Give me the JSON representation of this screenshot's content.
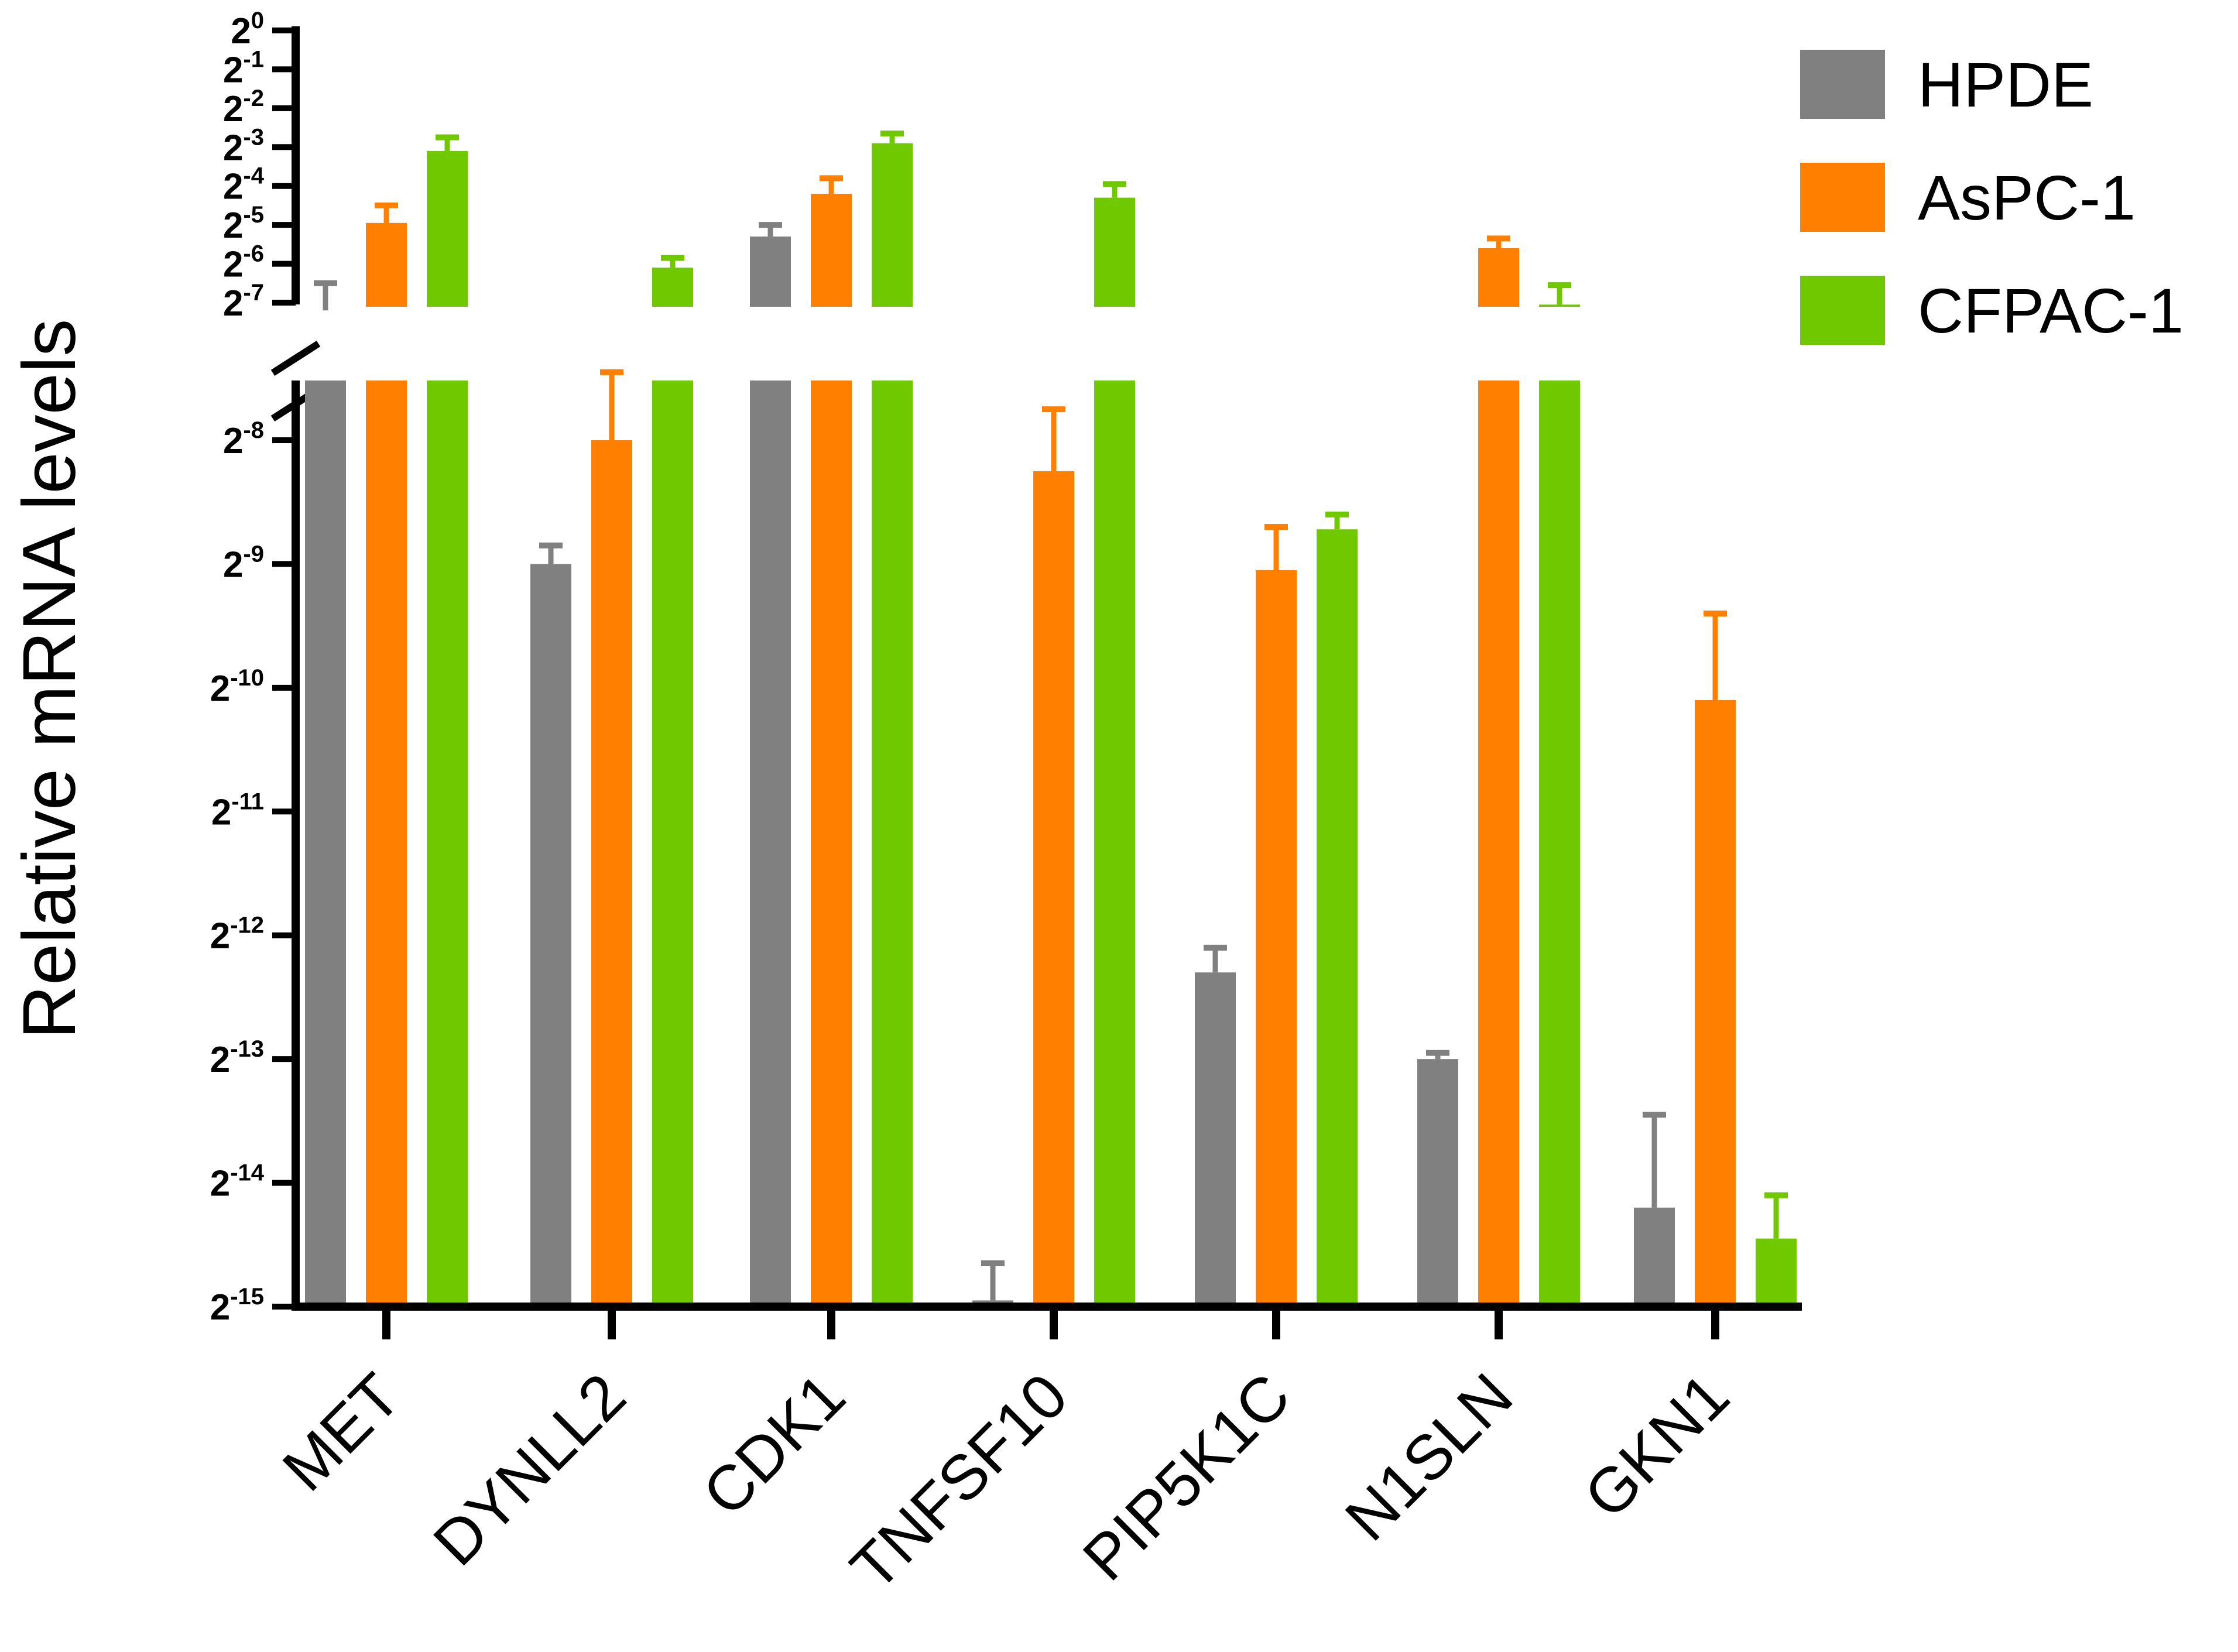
{
  "chart_data": {
    "type": "bar",
    "title": "",
    "ylabel": "Relative mRNA levels",
    "xlabel": "",
    "y_scale": "log2",
    "y_axis_break": {
      "lower_segment_ylim_exp": [
        -15,
        -7.4
      ],
      "upper_segment_ylim_exp": [
        -7.4,
        0
      ]
    },
    "y_ticks": [
      {
        "base": "2",
        "exp": "0"
      },
      {
        "base": "2",
        "exp": "-1"
      },
      {
        "base": "2",
        "exp": "-2"
      },
      {
        "base": "2",
        "exp": "-3"
      },
      {
        "base": "2",
        "exp": "-4"
      },
      {
        "base": "2",
        "exp": "-5"
      },
      {
        "base": "2",
        "exp": "-6"
      },
      {
        "base": "2",
        "exp": "-7"
      },
      {
        "base": "2",
        "exp": "-8"
      },
      {
        "base": "2",
        "exp": "-9"
      },
      {
        "base": "2",
        "exp": "-10"
      },
      {
        "base": "2",
        "exp": "-11"
      },
      {
        "base": "2",
        "exp": "-12"
      },
      {
        "base": "2",
        "exp": "-13"
      },
      {
        "base": "2",
        "exp": "-14"
      },
      {
        "base": "2",
        "exp": "-15"
      }
    ],
    "categories": [
      "MET",
      "DYNLL2",
      "CDK1",
      "TNFSF10",
      "PIP5K1C",
      "N1SLN",
      "GKN1"
    ],
    "series": [
      {
        "name": "HPDE",
        "color": "#808080",
        "log2_values": [
          -7.2,
          -9.0,
          -5.3,
          -14.95,
          -12.3,
          -13.0,
          -14.2
        ],
        "log2_error_upper": [
          -6.5,
          -8.85,
          -5.0,
          -14.65,
          -12.1,
          -12.95,
          -13.45
        ]
      },
      {
        "name": "AsPC-1",
        "color": "#FF8000",
        "log2_values": [
          -4.95,
          -8.0,
          -4.2,
          -8.25,
          -9.05,
          -5.6,
          -10.1
        ],
        "log2_error_upper": [
          -4.5,
          -7.45,
          -3.8,
          -7.75,
          -8.7,
          -5.35,
          -9.4
        ]
      },
      {
        "name": "CFPAC-1",
        "color": "#70C800",
        "log2_values": [
          -3.1,
          -6.1,
          -2.9,
          -4.3,
          -8.72,
          -7.05,
          -14.45
        ],
        "log2_error_upper": [
          -2.75,
          -5.85,
          -2.65,
          -3.95,
          -8.6,
          -6.55,
          -14.1
        ]
      }
    ],
    "legend": {
      "position": "top-right",
      "entries": [
        "HPDE",
        "AsPC-1",
        "CFPAC-1"
      ]
    }
  }
}
